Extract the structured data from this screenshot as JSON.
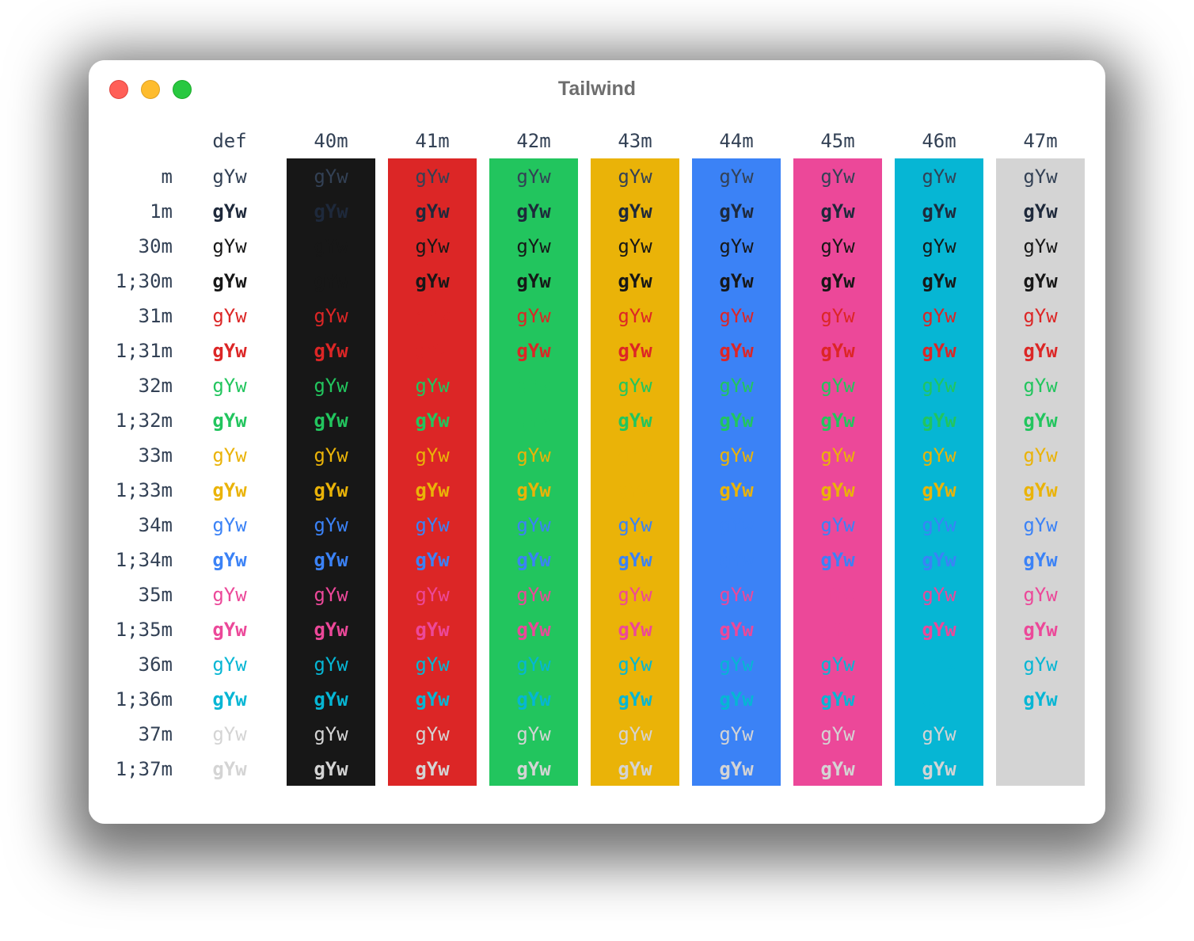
{
  "window": {
    "title": "Tailwind",
    "traffic_lights": [
      "close",
      "minimize",
      "maximize"
    ]
  },
  "palette": {
    "default_fg": "#334155",
    "default_bold_fg": "#1e293b",
    "30": "#171717",
    "31": "#dc2626",
    "32": "#22c55e",
    "33": "#eab308",
    "34": "#3b82f6",
    "35": "#ec4899",
    "36": "#06b6d4",
    "37": "#d4d4d4",
    "40": "#171717",
    "41": "#dc2626",
    "42": "#22c55e",
    "43": "#eab308",
    "44": "#3b82f6",
    "45": "#ec4899",
    "46": "#06b6d4",
    "47": "#d4d4d4"
  },
  "sample_text": "gYw",
  "columns": [
    {
      "label": "def",
      "bg": null
    },
    {
      "label": "40m",
      "bg": "40"
    },
    {
      "label": "41m",
      "bg": "41"
    },
    {
      "label": "42m",
      "bg": "42"
    },
    {
      "label": "43m",
      "bg": "43"
    },
    {
      "label": "44m",
      "bg": "44"
    },
    {
      "label": "45m",
      "bg": "45"
    },
    {
      "label": "46m",
      "bg": "46"
    },
    {
      "label": "47m",
      "bg": "47"
    }
  ],
  "rows": [
    {
      "label": "m",
      "fg": "default",
      "bold": false
    },
    {
      "label": "1m",
      "fg": "default",
      "bold": true
    },
    {
      "label": "30m",
      "fg": "30",
      "bold": false
    },
    {
      "label": "1;30m",
      "fg": "30",
      "bold": true
    },
    {
      "label": "31m",
      "fg": "31",
      "bold": false
    },
    {
      "label": "1;31m",
      "fg": "31",
      "bold": true
    },
    {
      "label": "32m",
      "fg": "32",
      "bold": false
    },
    {
      "label": "1;32m",
      "fg": "32",
      "bold": true
    },
    {
      "label": "33m",
      "fg": "33",
      "bold": false
    },
    {
      "label": "1;33m",
      "fg": "33",
      "bold": true
    },
    {
      "label": "34m",
      "fg": "34",
      "bold": false
    },
    {
      "label": "1;34m",
      "fg": "34",
      "bold": true
    },
    {
      "label": "35m",
      "fg": "35",
      "bold": false
    },
    {
      "label": "1;35m",
      "fg": "35",
      "bold": true
    },
    {
      "label": "36m",
      "fg": "36",
      "bold": false
    },
    {
      "label": "1;36m",
      "fg": "36",
      "bold": true
    },
    {
      "label": "37m",
      "fg": "37",
      "bold": false
    },
    {
      "label": "1;37m",
      "fg": "37",
      "bold": true
    }
  ],
  "note_hidden_cells": "Cells where foreground color equals background color are rendered invisible (text same color as background)."
}
